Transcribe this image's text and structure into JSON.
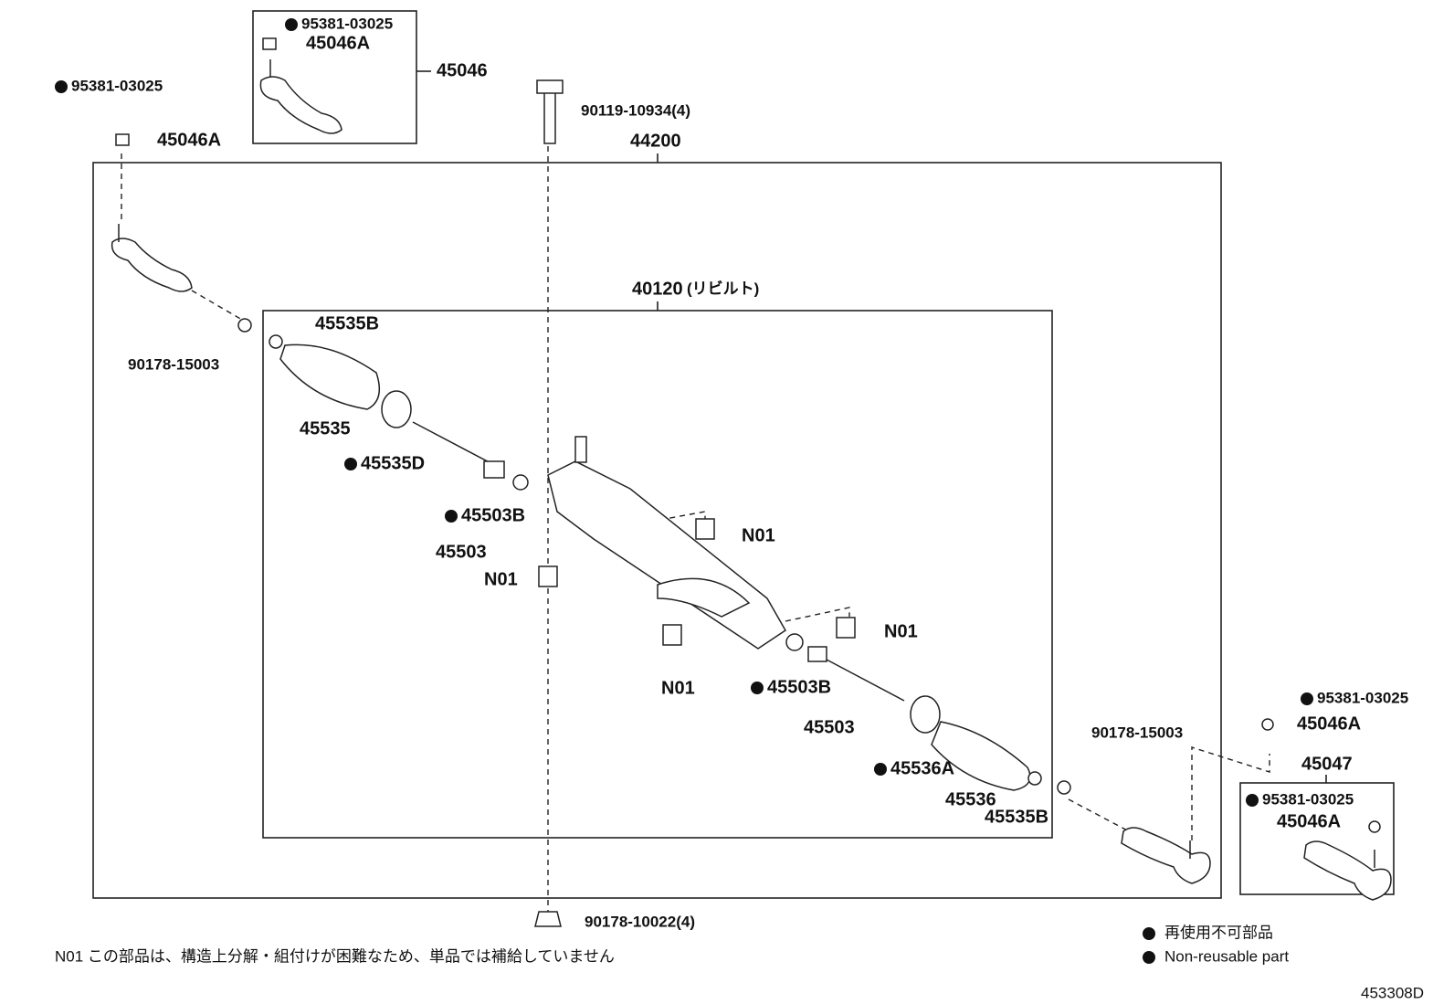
{
  "callouts": [
    "95381-03025",
    "45046A",
    "45046",
    "95381-03025",
    "45046A",
    "90119-10934(4)",
    "44200",
    "40120",
    "(リビルト)",
    "45535B",
    "90178-15003",
    "45535",
    "45535D",
    "45503B",
    "45503",
    "N01",
    "N01",
    "N01",
    "N01",
    "45503B",
    "45503",
    "90178-15003",
    "95381-03025",
    "45046A",
    "45047",
    "95381-03025",
    "45046A",
    "45536A",
    "45536",
    "45535B",
    "90178-10022(4)"
  ],
  "note": "N01 この部品は、構造上分解・組付けが困難なため、単品では補給していません",
  "legend": {
    "jp": "再使用不可部品",
    "en": "Non-reusable part"
  },
  "figure_id": "453308D"
}
